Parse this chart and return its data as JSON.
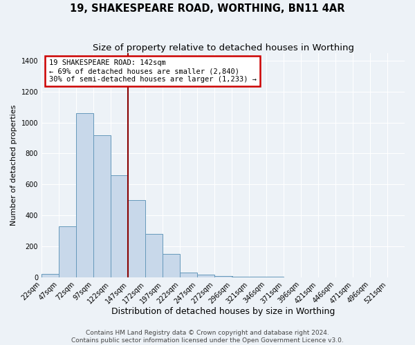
{
  "title": "19, SHAKESPEARE ROAD, WORTHING, BN11 4AR",
  "subtitle": "Size of property relative to detached houses in Worthing",
  "xlabel": "Distribution of detached houses by size in Worthing",
  "ylabel": "Number of detached properties",
  "bar_labels": [
    "22sqm",
    "47sqm",
    "72sqm",
    "97sqm",
    "122sqm",
    "147sqm",
    "172sqm",
    "197sqm",
    "222sqm",
    "247sqm",
    "272sqm",
    "296sqm",
    "321sqm",
    "346sqm",
    "371sqm",
    "396sqm",
    "421sqm",
    "446sqm",
    "471sqm",
    "496sqm",
    "521sqm"
  ],
  "bar_values": [
    20,
    330,
    1060,
    920,
    660,
    500,
    280,
    150,
    30,
    15,
    10,
    5,
    3,
    2,
    1,
    0,
    1,
    0,
    0,
    0,
    0
  ],
  "bar_color": "#c8d8ea",
  "bar_edge_color": "#6699bb",
  "vline_x": 147,
  "annotation_line1": "19 SHAKESPEARE ROAD: 142sqm",
  "annotation_line2": "← 69% of detached houses are smaller (2,840)",
  "annotation_line3": "30% of semi-detached houses are larger (1,233) →",
  "annotation_box_facecolor": "#ffffff",
  "annotation_box_edgecolor": "#cc0000",
  "vline_color": "#880000",
  "ylim": [
    0,
    1450
  ],
  "bin_width": 25,
  "bins_left_edges": [
    22,
    47,
    72,
    97,
    122,
    147,
    172,
    197,
    222,
    247,
    272,
    296,
    321,
    346,
    371,
    396,
    421,
    446,
    471,
    496,
    521
  ],
  "footer_line1": "Contains HM Land Registry data © Crown copyright and database right 2024.",
  "footer_line2": "Contains public sector information licensed under the Open Government Licence v3.0.",
  "background_color": "#edf2f7",
  "grid_color": "#ffffff",
  "title_fontsize": 10.5,
  "subtitle_fontsize": 9.5,
  "xlabel_fontsize": 9,
  "ylabel_fontsize": 8,
  "tick_fontsize": 7,
  "footer_fontsize": 6.5,
  "annotation_fontsize": 7.5
}
